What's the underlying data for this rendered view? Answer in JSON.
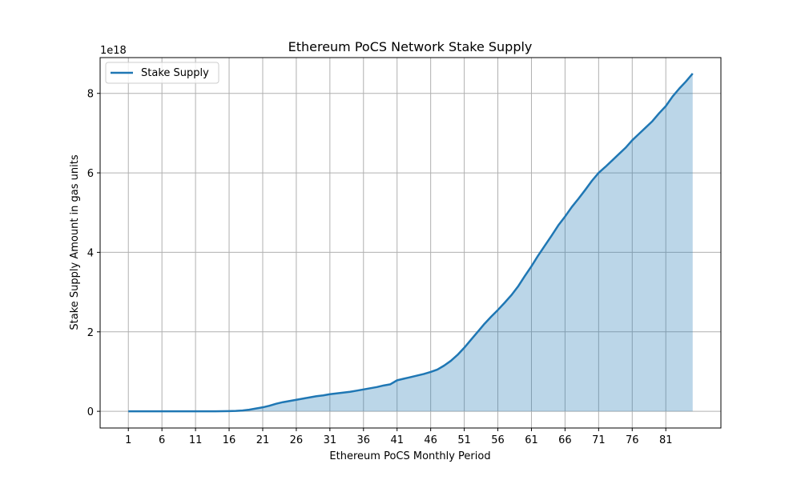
{
  "chart_data": {
    "type": "area",
    "title": "Ethereum PoCS Network Stake Supply",
    "xlabel": "Ethereum PoCS Monthly Period",
    "ylabel": "Stake Supply Amount in gas units",
    "y_offset_label": "1e18",
    "xlim": [
      -3.2,
      89.2
    ],
    "ylim": [
      -0.42,
      8.9
    ],
    "x_ticks": [
      1,
      6,
      11,
      16,
      21,
      26,
      31,
      36,
      41,
      46,
      51,
      56,
      61,
      66,
      71,
      76,
      81
    ],
    "y_ticks": [
      0,
      2,
      4,
      6,
      8
    ],
    "grid": true,
    "legend_position": "upper-left",
    "series": [
      {
        "name": "Stake Supply",
        "color": "#1f77b4",
        "fill_color": "#1f77b4",
        "fill_alpha": 0.3,
        "x": [
          1,
          2,
          3,
          4,
          5,
          6,
          7,
          8,
          9,
          10,
          11,
          12,
          13,
          14,
          15,
          16,
          17,
          18,
          19,
          20,
          21,
          22,
          23,
          24,
          25,
          26,
          27,
          28,
          29,
          30,
          31,
          32,
          33,
          34,
          35,
          36,
          37,
          38,
          39,
          40,
          41,
          42,
          43,
          44,
          45,
          46,
          47,
          48,
          49,
          50,
          51,
          52,
          53,
          54,
          55,
          56,
          57,
          58,
          59,
          60,
          61,
          62,
          63,
          64,
          65,
          66,
          67,
          68,
          69,
          70,
          71,
          72,
          73,
          74,
          75,
          76,
          77,
          78,
          79,
          80,
          81,
          82,
          83,
          84,
          85
        ],
        "values": [
          0,
          0,
          0,
          0,
          0,
          0,
          0,
          0,
          0,
          0,
          0,
          0,
          0,
          0,
          0.002,
          0.005,
          0.01,
          0.02,
          0.04,
          0.07,
          0.1,
          0.14,
          0.19,
          0.23,
          0.26,
          0.29,
          0.32,
          0.35,
          0.38,
          0.4,
          0.43,
          0.45,
          0.47,
          0.49,
          0.52,
          0.55,
          0.58,
          0.61,
          0.65,
          0.68,
          0.78,
          0.82,
          0.86,
          0.9,
          0.94,
          0.99,
          1.05,
          1.15,
          1.27,
          1.42,
          1.6,
          1.8,
          2.0,
          2.2,
          2.38,
          2.55,
          2.73,
          2.92,
          3.14,
          3.4,
          3.65,
          3.92,
          4.17,
          4.42,
          4.68,
          4.9,
          5.14,
          5.35,
          5.57,
          5.8,
          6.0,
          6.15,
          6.31,
          6.47,
          6.63,
          6.82,
          6.98,
          7.14,
          7.3,
          7.5,
          7.68,
          7.92,
          8.12,
          8.3,
          8.5
        ]
      }
    ]
  }
}
